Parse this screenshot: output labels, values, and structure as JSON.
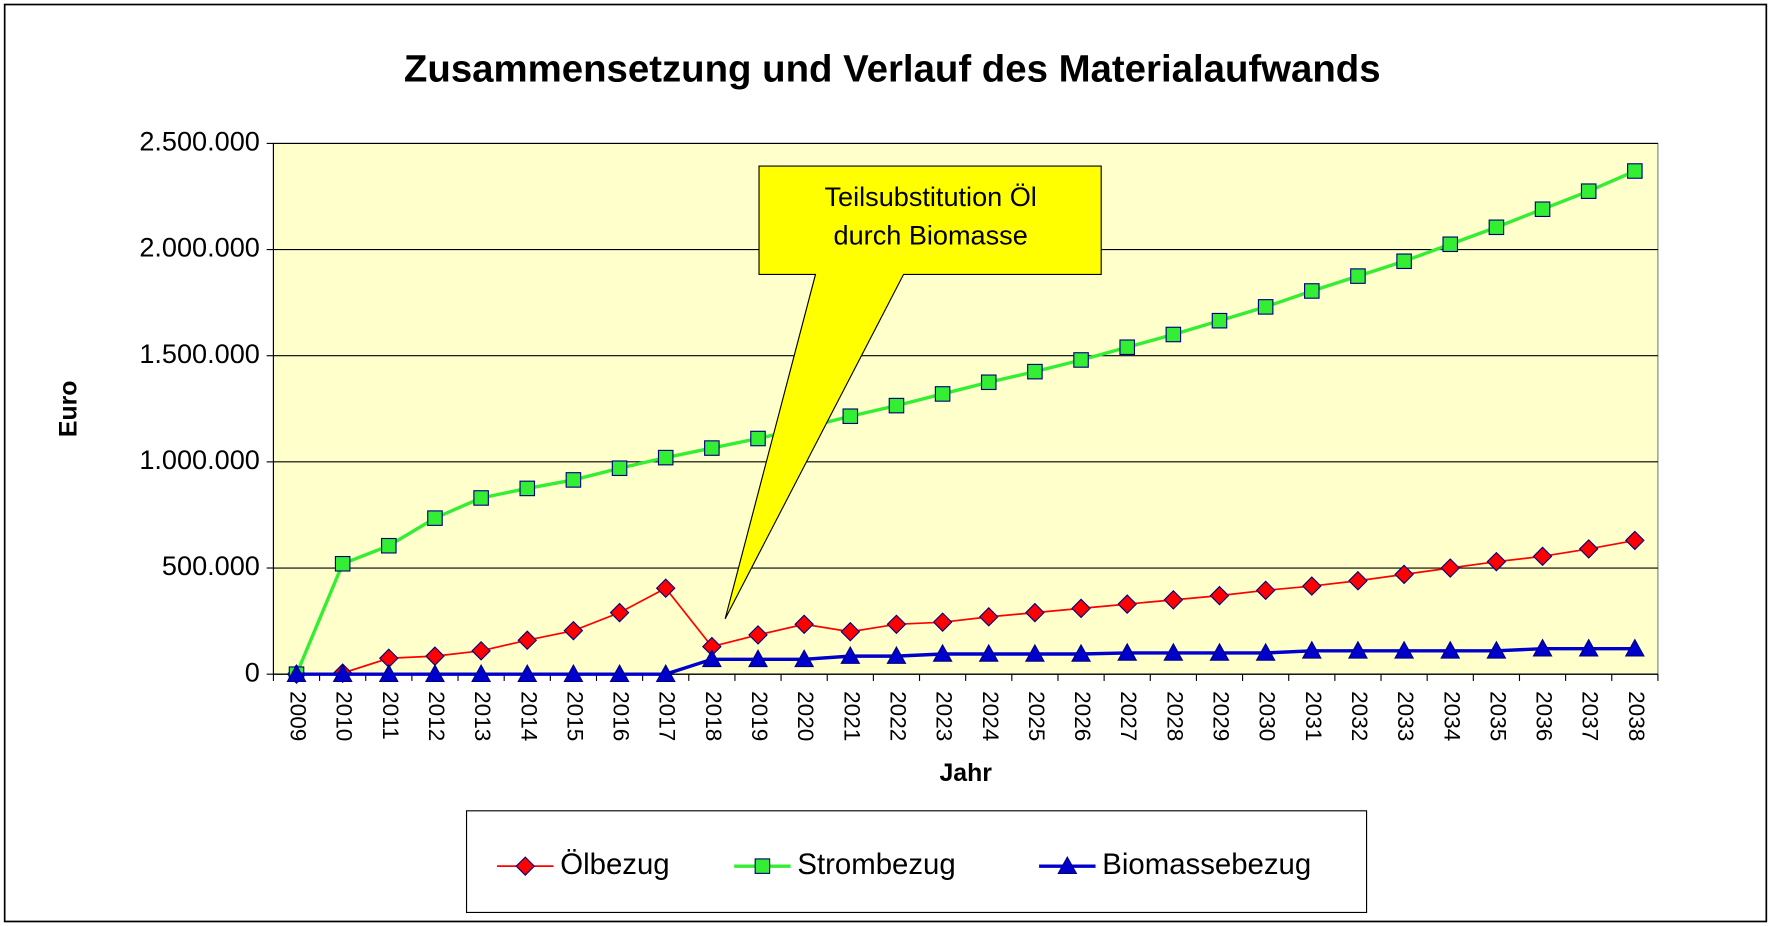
{
  "chart_data": {
    "type": "line",
    "title": "Zusammensetzung und Verlauf des Materialaufwands",
    "x_label": "Jahr",
    "y_label": "Euro",
    "annotation": [
      "Teilsubstitution Öl",
      "durch Biomasse"
    ],
    "categories": [
      "2009",
      "2010",
      "2011",
      "2012",
      "2013",
      "2014",
      "2015",
      "2016",
      "2017",
      "2018",
      "2019",
      "2020",
      "2021",
      "2022",
      "2023",
      "2024",
      "2025",
      "2026",
      "2027",
      "2028",
      "2029",
      "2030",
      "2031",
      "2032",
      "2033",
      "2034",
      "2035",
      "2036",
      "2037",
      "2038"
    ],
    "series": [
      {
        "name": "Ölbezug",
        "color": "#ff0000",
        "marker": "diamond",
        "values": [
          0,
          5000,
          75000,
          85000,
          110000,
          160000,
          205000,
          290000,
          405000,
          130000,
          185000,
          235000,
          200000,
          235000,
          245000,
          270000,
          290000,
          310000,
          330000,
          350000,
          370000,
          395000,
          415000,
          440000,
          470000,
          500000,
          530000,
          555000,
          590000,
          630000
        ]
      },
      {
        "name": "Strombezug",
        "color": "#33ee33",
        "marker": "square",
        "values": [
          0,
          520000,
          605000,
          735000,
          830000,
          875000,
          915000,
          970000,
          1020000,
          1065000,
          1110000,
          1160000,
          1215000,
          1265000,
          1320000,
          1375000,
          1425000,
          1480000,
          1540000,
          1600000,
          1665000,
          1730000,
          1805000,
          1875000,
          1945000,
          2025000,
          2105000,
          2190000,
          2275000,
          2370000
        ]
      },
      {
        "name": "Biomassebezug",
        "color": "#0000cc",
        "marker": "triangle",
        "values": [
          0,
          0,
          0,
          0,
          0,
          0,
          0,
          0,
          0,
          70000,
          70000,
          70000,
          85000,
          85000,
          95000,
          95000,
          95000,
          95000,
          100000,
          100000,
          100000,
          100000,
          110000,
          110000,
          110000,
          110000,
          110000,
          120000,
          120000,
          120000
        ]
      }
    ],
    "ylim": [
      0,
      2500000
    ],
    "yticks": [
      0,
      {
        "value": 500000,
        "label": "500.000"
      },
      {
        "value": 1000000,
        "label": "1.000.000"
      },
      {
        "value": 1500000,
        "label": "1.500.000"
      },
      {
        "value": 2000000,
        "label": "2.000.000"
      },
      {
        "value": 2500000,
        "label": "2.500.000"
      }
    ],
    "grid": true,
    "legend": "bottom"
  }
}
